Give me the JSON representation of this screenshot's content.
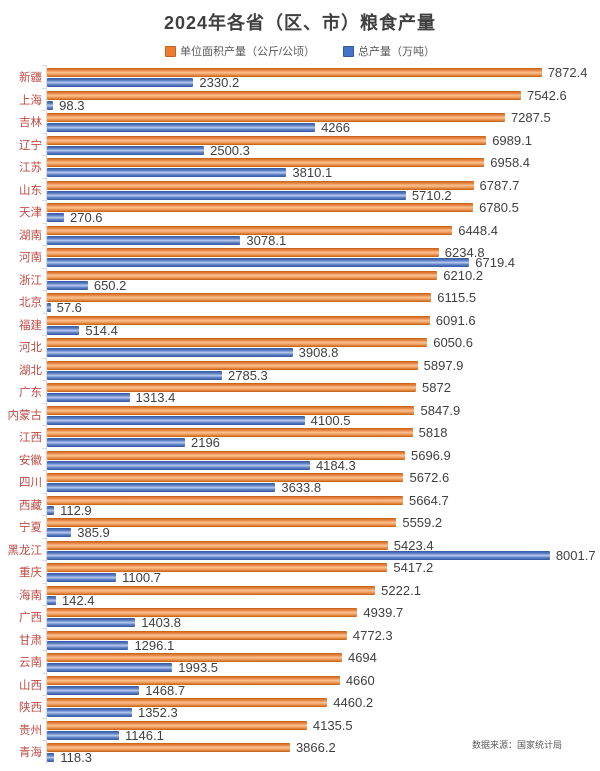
{
  "title": "2024年各省（区、市）粮食产量",
  "legend": {
    "items": [
      {
        "label": "单位面积产量（公斤/公顷）",
        "color": "#ED7D31"
      },
      {
        "label": "总产量（万吨）",
        "color": "#4472C4"
      }
    ]
  },
  "footer": {
    "source": "数据来源：国家统计局"
  },
  "colors": {
    "orange_series": "#ED7D31",
    "blue_series": "#4472C4",
    "category_label": "#BF4B44",
    "value_label": "#404040",
    "axis_line": "#D9D9D9",
    "title_text": "#404040",
    "background": "#FFFFFF"
  },
  "chart_data": {
    "type": "bar",
    "orientation": "horizontal",
    "title": "2024年各省（区、市）粮食产量",
    "xlabel": "",
    "ylabel": "",
    "xlim": [
      0,
      8800
    ],
    "grid": false,
    "legend_position": "top",
    "source_note": "数据来源：国家统计局",
    "categories": [
      "新疆",
      "上海",
      "吉林",
      "辽宁",
      "江苏",
      "山东",
      "天津",
      "湖南",
      "河南",
      "浙江",
      "北京",
      "福建",
      "河北",
      "湖北",
      "广东",
      "内蒙古",
      "江西",
      "安徽",
      "四川",
      "西藏",
      "宁夏",
      "黑龙江",
      "重庆",
      "海南",
      "广西",
      "甘肃",
      "云南",
      "山西",
      "陕西",
      "贵州",
      "青海"
    ],
    "series": [
      {
        "name": "单位面积产量（公斤/公顷）",
        "color": "#ED7D31",
        "values": [
          7872.4,
          7542.6,
          7287.5,
          6989.1,
          6958.4,
          6787.7,
          6780.5,
          6448.4,
          6234.8,
          6210.2,
          6115.5,
          6091.6,
          6050.6,
          5897.9,
          5872,
          5847.9,
          5818,
          5696.9,
          5672.6,
          5664.7,
          5559.2,
          5423.4,
          5417.2,
          5222.1,
          4939.7,
          4772.3,
          4694,
          4660,
          4460.2,
          4135.5,
          3866.2
        ]
      },
      {
        "name": "总产量（万吨）",
        "color": "#4472C4",
        "values": [
          2330.2,
          98.3,
          4266,
          2500.3,
          3810.1,
          5710.2,
          270.6,
          3078.1,
          6719.4,
          650.2,
          57.6,
          514.4,
          3908.8,
          2785.3,
          1313.4,
          4100.5,
          2196,
          4184.3,
          3633.8,
          112.9,
          385.9,
          8001.7,
          1100.7,
          142.4,
          1403.8,
          1296.1,
          1993.5,
          1468.7,
          1352.3,
          1146.1,
          118.3
        ]
      }
    ]
  }
}
